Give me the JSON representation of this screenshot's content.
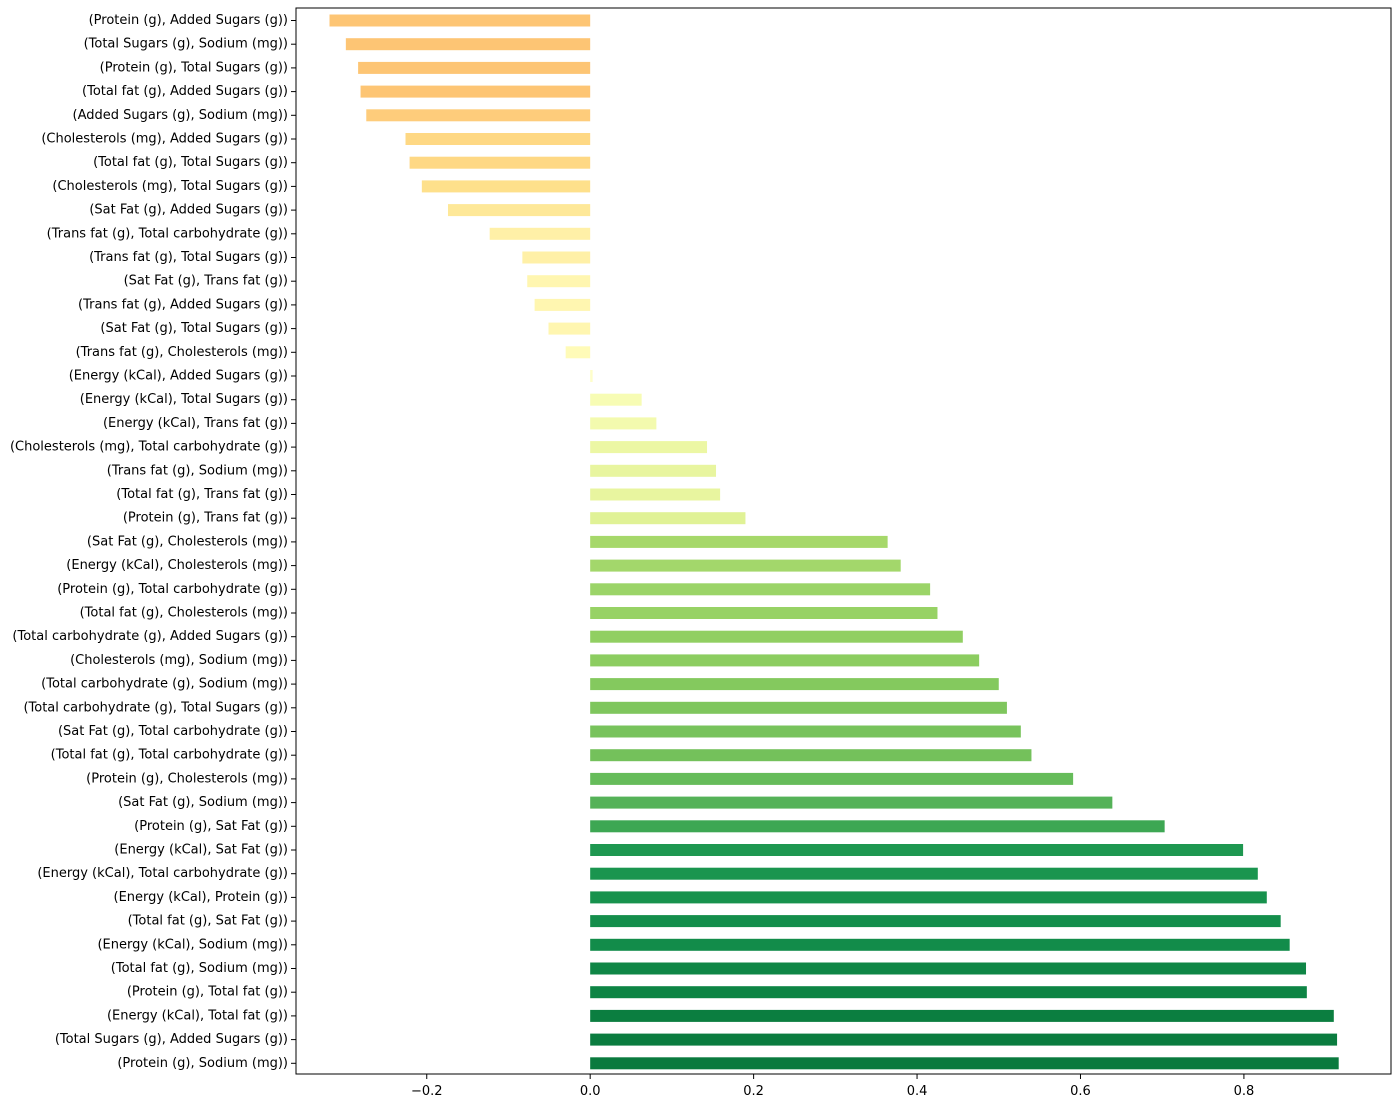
{
  "chart_data": {
    "type": "bar",
    "orientation": "horizontal",
    "title": "",
    "xlabel": "",
    "ylabel": "",
    "xlim": [
      -0.36,
      0.98
    ],
    "xticks": [
      -0.2,
      0.0,
      0.2,
      0.4,
      0.6,
      0.8
    ],
    "xtick_labels": [
      "−0.2",
      "0.0",
      "0.2",
      "0.4",
      "0.6",
      "0.8"
    ],
    "grid": false,
    "legend": "none",
    "colormap": "RdYlGn (sorted by value)",
    "categories": [
      "(Protein (g), Added Sugars (g))",
      "(Total Sugars (g), Sodium (mg))",
      "(Protein (g), Total Sugars (g))",
      "(Total fat (g), Added Sugars (g))",
      "(Added Sugars (g), Sodium (mg))",
      "(Cholesterols (mg), Added Sugars (g))",
      "(Total fat (g), Total Sugars (g))",
      "(Cholesterols (mg), Total Sugars (g))",
      "(Sat Fat (g), Added Sugars (g))",
      "(Trans fat (g), Total carbohydrate (g))",
      "(Trans fat (g), Total Sugars (g))",
      "(Sat Fat (g), Trans fat (g))",
      "(Trans fat (g), Added Sugars (g))",
      "(Sat Fat (g), Total Sugars (g))",
      "(Trans fat (g), Cholesterols (mg))",
      "(Energy (kCal), Added Sugars (g))",
      "(Energy (kCal), Total Sugars (g))",
      "(Energy (kCal), Trans fat (g))",
      "(Cholesterols (mg), Total carbohydrate (g))",
      "(Trans fat (g), Sodium (mg))",
      "(Total fat (g), Trans fat (g))",
      "(Protein (g), Trans fat (g))",
      "(Sat Fat (g), Cholesterols (mg))",
      "(Energy (kCal), Cholesterols (mg))",
      "(Protein (g), Total carbohydrate (g))",
      "(Total fat (g), Cholesterols (mg))",
      "(Total carbohydrate (g), Added Sugars (g))",
      "(Cholesterols (mg), Sodium (mg))",
      "(Total carbohydrate (g), Sodium (mg))",
      "(Total carbohydrate (g), Total Sugars (g))",
      "(Sat Fat (g), Total carbohydrate (g))",
      "(Total fat (g), Total carbohydrate (g))",
      "(Protein (g), Cholesterols (mg))",
      "(Sat Fat (g), Sodium (mg))",
      "(Protein (g), Sat Fat (g))",
      "(Energy (kCal), Sat Fat (g))",
      "(Energy (kCal), Total carbohydrate (g))",
      "(Energy (kCal), Protein (g))",
      "(Total fat (g), Sat Fat (g))",
      "(Energy (kCal), Sodium (mg))",
      "(Total fat (g), Sodium (mg))",
      "(Protein (g), Total fat (g))",
      "(Energy (kCal), Total fat (g))",
      "(Total Sugars (g), Added Sugars (g))",
      "(Protein (g), Sodium (mg))"
    ],
    "values": [
      -0.319,
      -0.299,
      -0.284,
      -0.281,
      -0.274,
      -0.226,
      -0.221,
      -0.206,
      -0.174,
      -0.123,
      -0.083,
      -0.077,
      -0.068,
      -0.051,
      -0.03,
      0.003,
      0.063,
      0.081,
      0.143,
      0.154,
      0.159,
      0.19,
      0.364,
      0.38,
      0.416,
      0.425,
      0.456,
      0.476,
      0.5,
      0.51,
      0.527,
      0.54,
      0.591,
      0.639,
      0.703,
      0.799,
      0.817,
      0.828,
      0.845,
      0.856,
      0.876,
      0.877,
      0.91,
      0.914,
      0.916
    ],
    "colors": [
      "#fdc574",
      "#fdc574",
      "#fdc574",
      "#fdc574",
      "#fecc7b",
      "#fed884",
      "#fed884",
      "#fee08b",
      "#fee898",
      "#fff0a7",
      "#fff0a7",
      "#fff6b0",
      "#fff6b0",
      "#fff6b0",
      "#fffbb8",
      "#fefeca",
      "#f7fcb4",
      "#f3faae",
      "#ecf7a4",
      "#e8f59f",
      "#e8f59f",
      "#e0f296",
      "#a6d86a",
      "#a3d76b",
      "#9bd468",
      "#97d265",
      "#91cf62",
      "#8ccd60",
      "#84c95e",
      "#7fc65d",
      "#78c35c",
      "#74c15b",
      "#66bc5a",
      "#55b258",
      "#3da753",
      "#1e9750",
      "#1a954f",
      "#17924d",
      "#148e4b",
      "#128c4a",
      "#0f8646",
      "#0d8444",
      "#0b7e40",
      "#0a7c3f",
      "#0a7a3e"
    ]
  }
}
